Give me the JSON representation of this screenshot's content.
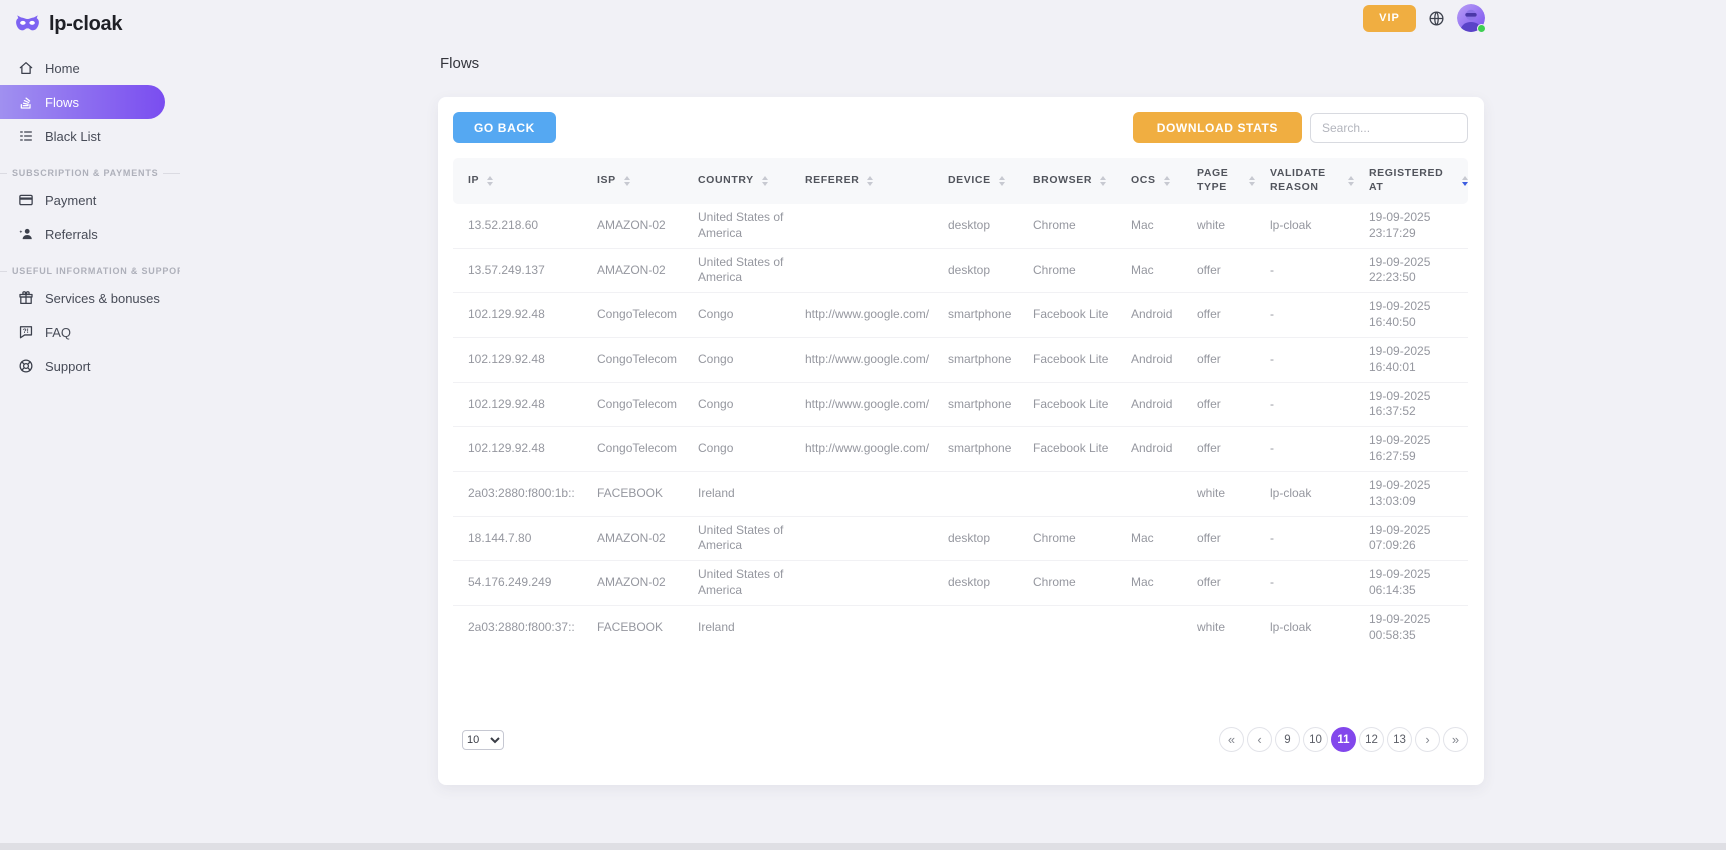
{
  "colors": {
    "page_bg": "#f1f1f6",
    "accent_purple": "#7a4df0",
    "accent_purple_light": "#a090f0",
    "blue_button": "#55a8f2",
    "orange_button": "#f0ae41",
    "active_page_bg": "#8247ec",
    "active_sort_arrow": "#3d5de0",
    "online_green": "#3ecf52"
  },
  "brand": {
    "logo_icon": "mask-icon",
    "name": "lp-cloak"
  },
  "topbar": {
    "vip_label": "VIP",
    "globe_icon": "globe-icon",
    "avatar_icon": "masked-avatar",
    "status": "online"
  },
  "sidebar": {
    "sections": [
      {
        "heading": "",
        "items": [
          {
            "icon": "home-icon",
            "label": "Home",
            "active": false
          },
          {
            "icon": "flows-icon",
            "label": "Flows",
            "active": true
          },
          {
            "icon": "blacklist-icon",
            "label": "Black List",
            "active": false
          }
        ]
      },
      {
        "heading": "SUBSCRIPTION & PAYMENTS",
        "items": [
          {
            "icon": "payment-icon",
            "label": "Payment",
            "active": false
          },
          {
            "icon": "referrals-icon",
            "label": "Referrals",
            "active": false
          }
        ]
      },
      {
        "heading": "USEFUL INFORMATION & SUPPORT",
        "items": [
          {
            "icon": "gift-icon",
            "label": "Services & bonuses",
            "active": false
          },
          {
            "icon": "faq-icon",
            "label": "FAQ",
            "active": false
          },
          {
            "icon": "support-icon",
            "label": "Support",
            "active": false
          }
        ]
      }
    ]
  },
  "page": {
    "title": "Flows"
  },
  "toolbar": {
    "go_back_label": "GO BACK",
    "download_stats_label": "DOWNLOAD STATS",
    "search_placeholder": "Search..."
  },
  "table": {
    "columns": [
      {
        "label": "IP",
        "sort": "none"
      },
      {
        "label": "ISP",
        "sort": "none"
      },
      {
        "label": "COUNTRY",
        "sort": "none"
      },
      {
        "label": "REFERER",
        "sort": "none"
      },
      {
        "label": "DEVICE",
        "sort": "none"
      },
      {
        "label": "BROWSER",
        "sort": "none"
      },
      {
        "label": "OCS",
        "sort": "none"
      },
      {
        "label": "PAGE TYPE",
        "sort": "none"
      },
      {
        "label": "VALIDATE REASON",
        "sort": "none"
      },
      {
        "label": "REGISTERED AT",
        "sort": "desc"
      }
    ],
    "rows": [
      [
        "13.52.218.60",
        "AMAZON-02",
        "United States of America",
        "",
        "desktop",
        "Chrome",
        "Mac",
        "white",
        "lp-cloak",
        "19-09-2025 23:17:29"
      ],
      [
        "13.57.249.137",
        "AMAZON-02",
        "United States of America",
        "",
        "desktop",
        "Chrome",
        "Mac",
        "offer",
        "-",
        "19-09-2025 22:23:50"
      ],
      [
        "102.129.92.48",
        "CongoTelecom",
        "Congo",
        "http://www.google.com/",
        "smartphone",
        "Facebook Lite",
        "Android",
        "offer",
        "-",
        "19-09-2025 16:40:50"
      ],
      [
        "102.129.92.48",
        "CongoTelecom",
        "Congo",
        "http://www.google.com/",
        "smartphone",
        "Facebook Lite",
        "Android",
        "offer",
        "-",
        "19-09-2025 16:40:01"
      ],
      [
        "102.129.92.48",
        "CongoTelecom",
        "Congo",
        "http://www.google.com/",
        "smartphone",
        "Facebook Lite",
        "Android",
        "offer",
        "-",
        "19-09-2025 16:37:52"
      ],
      [
        "102.129.92.48",
        "CongoTelecom",
        "Congo",
        "http://www.google.com/",
        "smartphone",
        "Facebook Lite",
        "Android",
        "offer",
        "-",
        "19-09-2025 16:27:59"
      ],
      [
        "2a03:2880:f800:1b::",
        "FACEBOOK",
        "Ireland",
        "",
        "",
        "",
        "",
        "white",
        "lp-cloak",
        "19-09-2025 13:03:09"
      ],
      [
        "18.144.7.80",
        "AMAZON-02",
        "United States of America",
        "",
        "desktop",
        "Chrome",
        "Mac",
        "offer",
        "-",
        "19-09-2025 07:09:26"
      ],
      [
        "54.176.249.249",
        "AMAZON-02",
        "United States of America",
        "",
        "desktop",
        "Chrome",
        "Mac",
        "offer",
        "-",
        "19-09-2025 06:14:35"
      ],
      [
        "2a03:2880:f800:37::",
        "FACEBOOK",
        "Ireland",
        "",
        "",
        "",
        "",
        "white",
        "lp-cloak",
        "19-09-2025 00:58:35"
      ]
    ]
  },
  "pagination": {
    "page_size": "10",
    "active_page": "11",
    "buttons": [
      {
        "label": "«",
        "type": "first",
        "active": false
      },
      {
        "label": "‹",
        "type": "prev",
        "active": false
      },
      {
        "label": "9",
        "type": "page",
        "active": false
      },
      {
        "label": "10",
        "type": "page",
        "active": false
      },
      {
        "label": "11",
        "type": "page",
        "active": true
      },
      {
        "label": "12",
        "type": "page",
        "active": false
      },
      {
        "label": "13",
        "type": "page",
        "active": false
      },
      {
        "label": "›",
        "type": "next",
        "active": false
      },
      {
        "label": "»",
        "type": "last",
        "active": false
      }
    ]
  }
}
